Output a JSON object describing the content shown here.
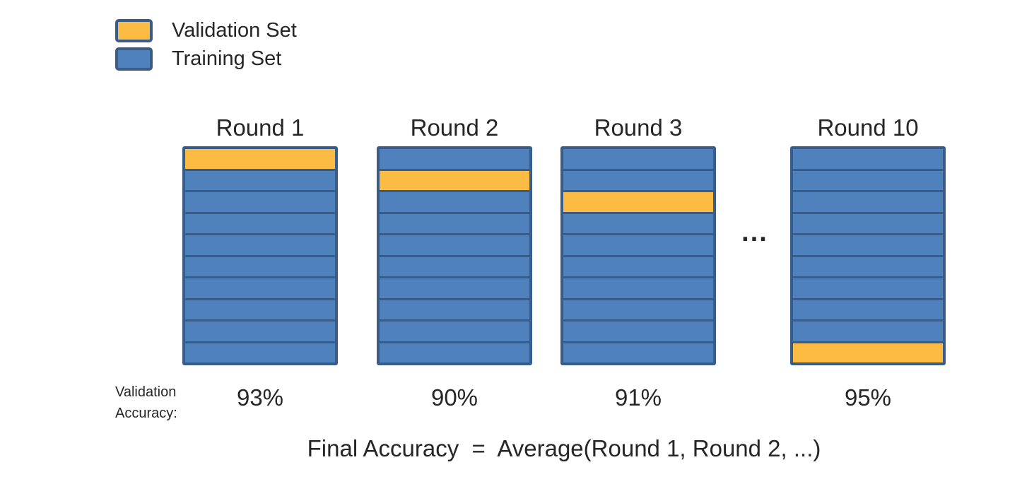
{
  "legend": {
    "items": [
      {
        "key": "validation",
        "label": "Validation Set"
      },
      {
        "key": "training",
        "label": "Training Set"
      }
    ]
  },
  "diagram": {
    "segments_per_round": 10,
    "rounds": [
      {
        "title": "Round 1",
        "validation_index": 0,
        "accuracy": "93%"
      },
      {
        "title": "Round 2",
        "validation_index": 1,
        "accuracy": "90%"
      },
      {
        "title": "Round 3",
        "validation_index": 2,
        "accuracy": "91%"
      },
      {
        "title": "Round 10",
        "validation_index": 9,
        "accuracy": "95%"
      }
    ],
    "ellipsis": "...",
    "accuracy_label_line1": "Validation",
    "accuracy_label_line2": "Accuracy:"
  },
  "formula": "Final Accuracy  =  Average(Round 1, Round 2, ...)",
  "colors": {
    "validation_fill": "#FCBB43",
    "training_fill": "#4F81BD",
    "border": "#385D8A",
    "text": "#262626"
  }
}
